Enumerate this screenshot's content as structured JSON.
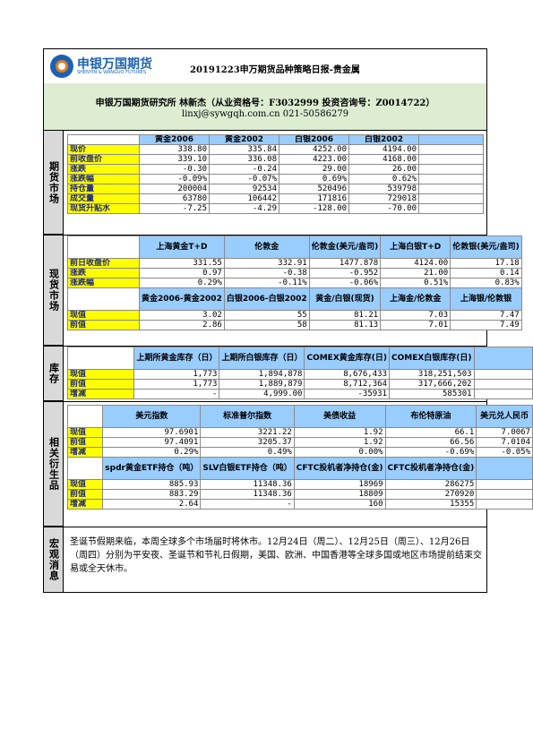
{
  "header": {
    "logo_cn": "申银万国期货",
    "logo_en": "SHENYIN & WANGUO FUTURES",
    "title": "20191223申万期货品种策略日报-贵金属"
  },
  "author": {
    "line1": "申银万国期货研究所 林新杰（从业资格号：F3032999 投资咨询号：Z0014722）",
    "line2": "linxj@sywgqh.com.cn   021-50586279"
  },
  "sections": {
    "futures": "期货市场",
    "spot": "现货市场",
    "inventory": "库存",
    "related": "相关衍生品",
    "macro": "宏观消息"
  },
  "futures": {
    "headers": [
      "黄金2006",
      "黄金2002",
      "白银2006",
      "白银2002"
    ],
    "rows": [
      {
        "label": "现价",
        "values": [
          "338.80",
          "335.84",
          "4252.00",
          "4194.00"
        ]
      },
      {
        "label": "前收盘价",
        "values": [
          "339.10",
          "336.08",
          "4223.00",
          "4168.00"
        ]
      },
      {
        "label": "涨跌",
        "values": [
          "-0.30",
          "-0.24",
          "29.00",
          "26.00"
        ]
      },
      {
        "label": "涨跌幅",
        "values": [
          "-0.09%",
          "-0.07%",
          "0.69%",
          "0.62%"
        ]
      },
      {
        "label": "持仓量",
        "values": [
          "200004",
          "92534",
          "520496",
          "539798"
        ]
      },
      {
        "label": "成交量",
        "values": [
          "63780",
          "106442",
          "171816",
          "729018"
        ]
      },
      {
        "label": "现货升贴水",
        "values": [
          "-7.25",
          "-4.29",
          "-128.00",
          "-70.00"
        ]
      }
    ]
  },
  "spot1": {
    "headers": [
      "上海黄金T+D",
      "伦敦金",
      "伦敦金(美元/盎司)",
      "上海白银T+D",
      "伦敦银(美元/盎司)"
    ],
    "rows": [
      {
        "label": "前日收盘价",
        "values": [
          "331.55",
          "332.91",
          "1477.878",
          "4124.00",
          "17.18"
        ]
      },
      {
        "label": "涨跌",
        "values": [
          "0.97",
          "-0.38",
          "-0.952",
          "21.00",
          "0.14"
        ]
      },
      {
        "label": "涨跌幅",
        "values": [
          "0.29%",
          "-0.11%",
          "-0.06%",
          "0.51%",
          "0.83%"
        ]
      }
    ]
  },
  "spot2": {
    "headers": [
      "黄金2006-黄金2002",
      "白银2006-白银2002",
      "黄金/白银(现货)",
      "上海金/伦敦金",
      "上海银/伦敦银"
    ],
    "rows": [
      {
        "label": "现值",
        "values": [
          "3.02",
          "55",
          "81.21",
          "7.03",
          "7.47"
        ]
      },
      {
        "label": "前值",
        "values": [
          "2.86",
          "58",
          "81.13",
          "7.01",
          "7.49"
        ]
      }
    ]
  },
  "inventory": {
    "headers": [
      "上期所黄金库存（日）",
      "上期所白银库存（日）",
      "COMEX黄金库存(日)",
      "COMEX白银库存(日)",
      ""
    ],
    "rows": [
      {
        "label": "现值",
        "values": [
          "1,773",
          "1,894,878",
          "8,676,433",
          "318,251,503",
          ""
        ]
      },
      {
        "label": "前值",
        "values": [
          "1,773",
          "1,889,879",
          "8,712,364",
          "317,666,202",
          ""
        ]
      },
      {
        "label": "增减",
        "values": [
          "-",
          "4,999.00",
          "-35931",
          "585301",
          ""
        ]
      }
    ]
  },
  "related1": {
    "headers": [
      "美元指数",
      "标准普尔指数",
      "美债收益",
      "布伦特原油",
      "美元兑人民币"
    ],
    "rows": [
      {
        "label": "现值",
        "values": [
          "97.6901",
          "3221.22",
          "1.92",
          "66.1",
          "7.0067"
        ]
      },
      {
        "label": "前值",
        "values": [
          "97.4091",
          "3205.37",
          "1.92",
          "66.56",
          "7.0104"
        ]
      },
      {
        "label": "增减",
        "values": [
          "0.29%",
          "0.49%",
          "0.00%",
          "-0.69%",
          "-0.05%"
        ]
      }
    ]
  },
  "related2": {
    "headers": [
      "spdr黄金ETF持仓（吨）",
      "SLV白银ETF持仓（吨）",
      "CFTC投机者净持仓(金)",
      "CFTC投机者净持仓(金)",
      ""
    ],
    "rows": [
      {
        "label": "现值",
        "values": [
          "885.93",
          "11348.36",
          "18969",
          "286275",
          ""
        ]
      },
      {
        "label": "前值",
        "values": [
          "883.29",
          "11348.36",
          "18809",
          "270920",
          ""
        ]
      },
      {
        "label": "增减",
        "values": [
          "2.64",
          "-",
          "160",
          "15355",
          ""
        ]
      }
    ]
  },
  "macro": {
    "text": "圣诞节假期来临，本周全球多个市场届时将休市。12月24日（周二）、12月25日（周三）、12月26日（周四）分别为平安夜、圣诞节和节礼日假期，美国、欧洲、中国香港等全球多国或地区市场提前结束交易或全天休市。"
  }
}
